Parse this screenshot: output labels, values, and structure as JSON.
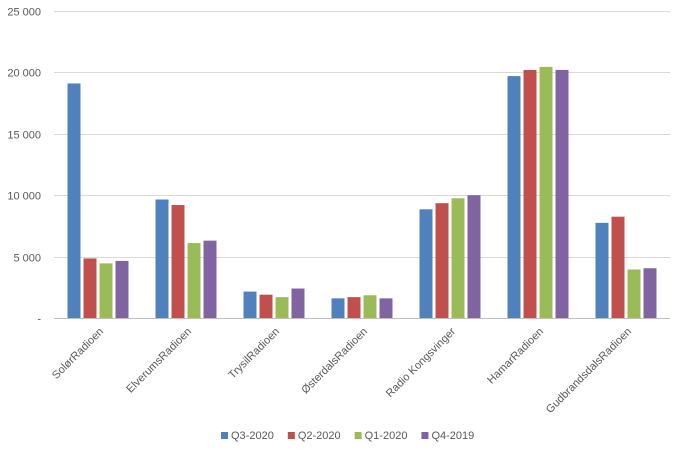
{
  "chart_data": {
    "type": "bar",
    "categories": [
      "SolørRadioen",
      "ElverumsRadioen",
      "TrysilRadioen",
      "ØsterdalsRadioen",
      "Radio Kongsvinger",
      "HamarRadioen",
      "GudbrandsdalsRadioen"
    ],
    "series": [
      {
        "name": "Q3-2020",
        "color": "#4F81BD",
        "values": [
          19100,
          9650,
          2150,
          1600,
          8850,
          19700,
          7750
        ]
      },
      {
        "name": "Q2-2020",
        "color": "#C0504D",
        "values": [
          4850,
          9200,
          1900,
          1700,
          9350,
          20200,
          8250
        ]
      },
      {
        "name": "Q1-2020",
        "color": "#9BBB59",
        "values": [
          4450,
          6100,
          1700,
          1850,
          9750,
          20450,
          3950
        ]
      },
      {
        "name": "Q4-2019",
        "color": "#8064A2",
        "values": [
          4650,
          6300,
          2400,
          1600,
          10000,
          20200,
          4050
        ]
      }
    ],
    "y_ticks": [
      {
        "value": 0,
        "label": "-"
      },
      {
        "value": 5000,
        "label": "5 000"
      },
      {
        "value": 10000,
        "label": "10 000"
      },
      {
        "value": 15000,
        "label": "15 000"
      },
      {
        "value": 20000,
        "label": "20 000"
      },
      {
        "value": 25000,
        "label": "25 000"
      }
    ],
    "ylim": [
      0,
      25000
    ],
    "grid": true,
    "legend_position": "bottom"
  }
}
